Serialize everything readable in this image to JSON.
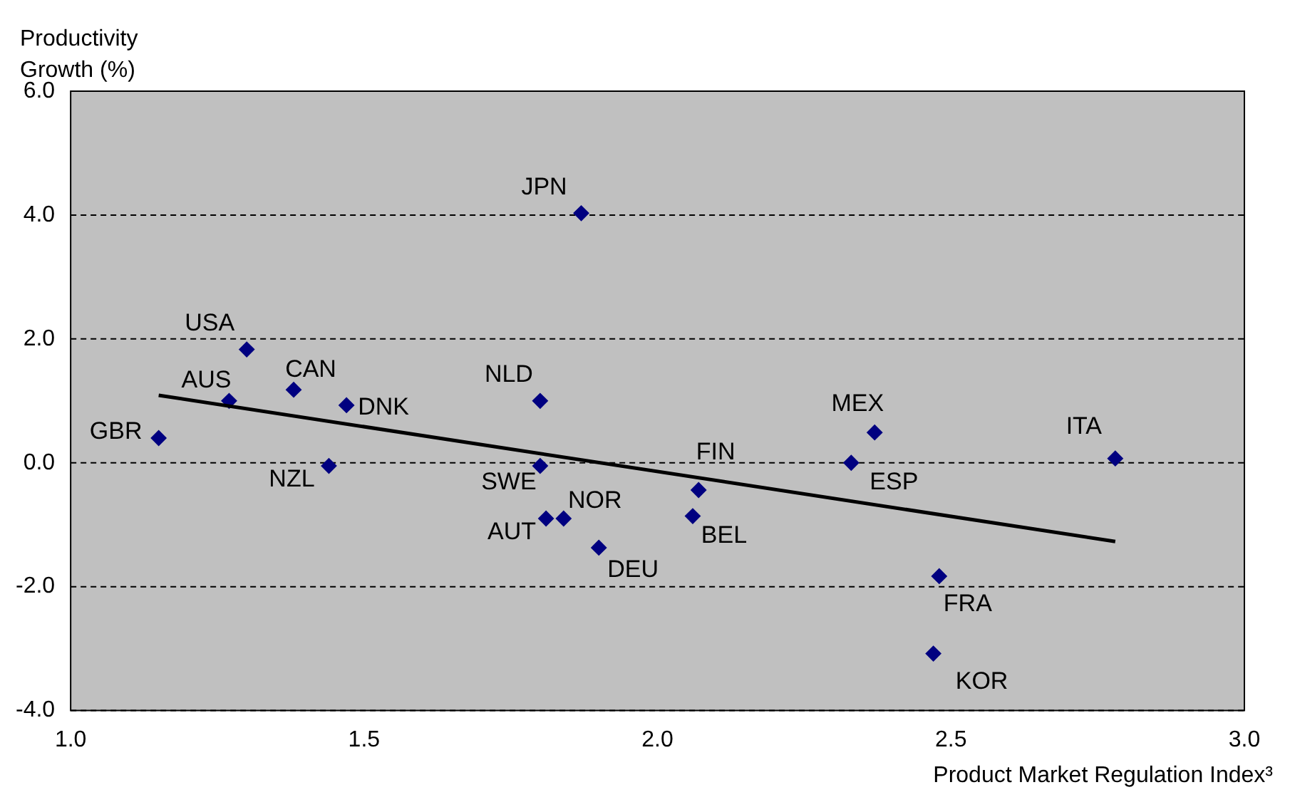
{
  "chart_data": {
    "type": "scatter",
    "xlabel": "Product Market Regulation Index³",
    "ylabel": "Productivity Growth (%)",
    "series": [
      {
        "type": "scatter",
        "color": "#000080",
        "marker": "diamond",
        "x": [
          1.15,
          1.27,
          1.3,
          1.38,
          1.47,
          1.44,
          1.8,
          1.87,
          1.8,
          1.81,
          1.84,
          1.9,
          2.07,
          2.06,
          2.33,
          2.37,
          2.78,
          2.48,
          2.47
        ],
        "values": [
          0.4,
          1.0,
          1.83,
          1.18,
          0.93,
          -0.05,
          1.0,
          4.03,
          -0.05,
          -0.9,
          -0.9,
          -1.37,
          -0.44,
          -0.86,
          0.0,
          0.49,
          0.07,
          -1.83,
          -3.08
        ]
      },
      {
        "type": "line",
        "color": "#000000",
        "marker": "none",
        "x": [
          1.15,
          2.78
        ],
        "values": [
          1.09,
          -1.27
        ]
      }
    ],
    "annotations": [
      {
        "text": "GBR",
        "x": 1.15,
        "y": 0.4
      },
      {
        "text": "AUS",
        "x": 1.27,
        "y": 1.0
      },
      {
        "text": "USA",
        "x": 1.3,
        "y": 1.83
      },
      {
        "text": "CAN",
        "x": 1.38,
        "y": 1.18
      },
      {
        "text": "DNK",
        "x": 1.47,
        "y": 0.93
      },
      {
        "text": "NZL",
        "x": 1.44,
        "y": -0.05
      },
      {
        "text": "NLD",
        "x": 1.8,
        "y": 1.0
      },
      {
        "text": "JPN",
        "x": 1.87,
        "y": 4.03
      },
      {
        "text": "SWE",
        "x": 1.8,
        "y": -0.05
      },
      {
        "text": "AUT",
        "x": 1.81,
        "y": -0.9
      },
      {
        "text": "NOR",
        "x": 1.84,
        "y": -0.9
      },
      {
        "text": "DEU",
        "x": 1.9,
        "y": -1.37
      },
      {
        "text": "FIN",
        "x": 2.07,
        "y": -0.44
      },
      {
        "text": "BEL",
        "x": 2.06,
        "y": -0.86
      },
      {
        "text": "ESP",
        "x": 2.33,
        "y": 0.0
      },
      {
        "text": "MEX",
        "x": 2.37,
        "y": 0.49
      },
      {
        "text": "ITA",
        "x": 2.78,
        "y": 0.07
      },
      {
        "text": "FRA",
        "x": 2.48,
        "y": -1.83
      },
      {
        "text": "KOR",
        "x": 2.47,
        "y": -3.08
      }
    ],
    "xlim": [
      1.0,
      3.0
    ],
    "xticks": [
      {
        "value": 1,
        "label": "1.0"
      },
      {
        "value": 1.5,
        "label": "1.5"
      },
      {
        "value": 2,
        "label": "2.0"
      },
      {
        "value": 2.5,
        "label": "2.5"
      },
      {
        "value": 3,
        "label": "3.0"
      }
    ],
    "ylim": [
      -4.0,
      6.0
    ],
    "yticks": [
      {
        "value": -4,
        "label": "-4.0"
      },
      {
        "value": -2,
        "label": "-2.0"
      },
      {
        "value": 0,
        "label": "0.0"
      },
      {
        "value": 2,
        "label": "2.0"
      },
      {
        "value": 4,
        "label": "4.0"
      },
      {
        "value": 6,
        "label": "6.0"
      }
    ],
    "grid": "y",
    "legend": false
  }
}
